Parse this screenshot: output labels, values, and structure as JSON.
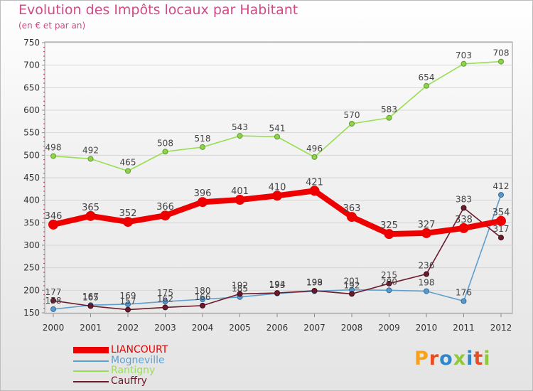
{
  "title": "Evolution des Impôts locaux par Habitant",
  "subtitle": "(en € et par an)",
  "logo_text": "Proxiti",
  "chart_data": {
    "type": "line",
    "title": "Evolution des Impôts locaux par Habitant",
    "subtitle": "(en € et par an)",
    "xlabel": "",
    "ylabel": "",
    "categories": [
      "2000",
      "2001",
      "2002",
      "2003",
      "2004",
      "2005",
      "2006",
      "2007",
      "2008",
      "2009",
      "2010",
      "2011",
      "2012"
    ],
    "ylim": [
      150,
      750
    ],
    "yticks": [
      150,
      200,
      250,
      300,
      350,
      400,
      450,
      500,
      550,
      600,
      650,
      700,
      750
    ],
    "grid": "horizontal",
    "legend_position": "bottom-left",
    "series": [
      {
        "name": "Rantigny",
        "color": "#99dd55",
        "values": [
          498,
          492,
          465,
          508,
          518,
          543,
          541,
          496,
          570,
          583,
          654,
          703,
          708
        ]
      },
      {
        "name": "Mogneville",
        "color": "#5f9fd0",
        "values": [
          158,
          167,
          169,
          175,
          180,
          185,
          193,
          198,
          201,
          200,
          198,
          176,
          412
        ]
      },
      {
        "name": "Cauffry",
        "color": "#6b1a2b",
        "values": [
          177,
          165,
          157,
          162,
          166,
          192,
          194,
          199,
          192,
          215,
          236,
          383,
          317
        ]
      },
      {
        "name": "LIANCOURT",
        "color": "#ee0000",
        "values": [
          346,
          365,
          352,
          366,
          396,
          401,
          410,
          421,
          363,
          325,
          327,
          338,
          354
        ]
      }
    ],
    "data_labels": {
      "Rantigny": [
        "498",
        "492",
        "465",
        "508",
        "518",
        "543",
        "541",
        "496",
        "570",
        "583",
        "654",
        "703",
        "708"
      ],
      "Mogneville": [
        "158",
        "167",
        "169",
        "175",
        "180",
        "185",
        "193",
        "198",
        "201",
        "200",
        "198",
        "176",
        "412"
      ],
      "Cauffry": [
        "177",
        "165",
        "157",
        "162",
        "166",
        "192",
        "194",
        "199",
        "192",
        "215",
        "236",
        "383",
        "317"
      ],
      "LIANCOURT": [
        "346",
        "365",
        "352",
        "366",
        "396",
        "401",
        "410",
        "421",
        "363",
        "325",
        "327",
        "338",
        "354"
      ]
    }
  },
  "legend": [
    {
      "name": "LIANCOURT",
      "color": "#ee0000"
    },
    {
      "name": "Mogneville",
      "color": "#5f9fd0"
    },
    {
      "name": "Rantigny",
      "color": "#99dd55"
    },
    {
      "name": "Cauffry",
      "color": "#6b1a2b"
    }
  ]
}
